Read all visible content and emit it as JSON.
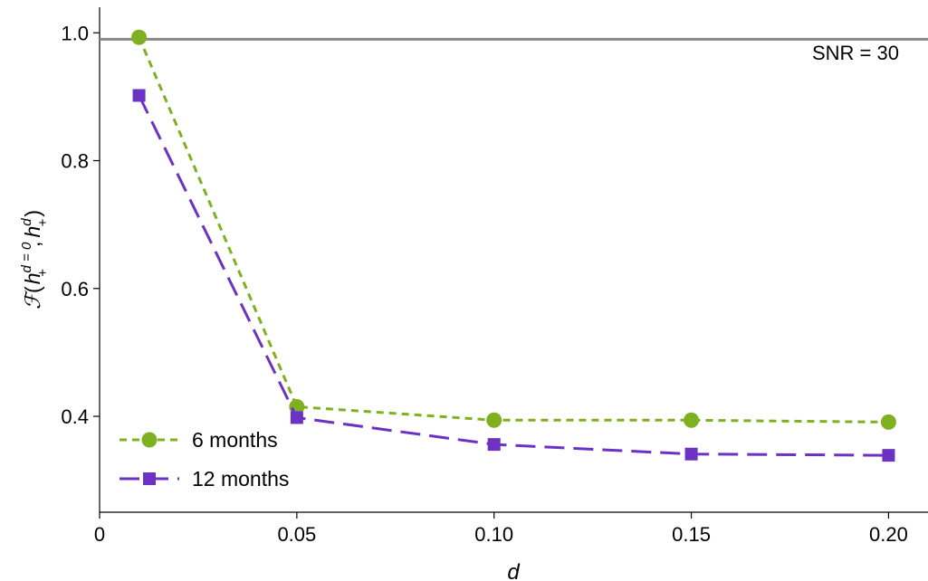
{
  "chart_data": {
    "type": "line",
    "xlabel": "d",
    "ylabel": {
      "func": "ℱ",
      "open": "(",
      "h1": "h",
      "sup1": "d = 0",
      "sub1": "+",
      "comma": ",",
      "h2": "h",
      "sup2": "d",
      "sub2": "+",
      "close": ")"
    },
    "xlim": [
      0,
      0.21
    ],
    "ylim": [
      0.25,
      1.04
    ],
    "xticks": [
      {
        "value": 0,
        "label": "0"
      },
      {
        "value": 0.05,
        "label": "0.05"
      },
      {
        "value": 0.1,
        "label": "0.10"
      },
      {
        "value": 0.15,
        "label": "0.15"
      },
      {
        "value": 0.2,
        "label": "0.20"
      }
    ],
    "yticks": [
      {
        "value": 0.4,
        "label": "0.4"
      },
      {
        "value": 0.6,
        "label": "0.6"
      },
      {
        "value": 0.8,
        "label": "0.8"
      },
      {
        "value": 1.0,
        "label": "1.0"
      }
    ],
    "reference_line": {
      "value": 0.99,
      "label": "SNR = 30",
      "color": "#888888"
    },
    "series": [
      {
        "name": "6 months",
        "color": "#7fb020",
        "marker": "circle",
        "dash": "short",
        "points": [
          {
            "x": 0.01,
            "y": 0.993
          },
          {
            "x": 0.05,
            "y": 0.415
          },
          {
            "x": 0.1,
            "y": 0.394
          },
          {
            "x": 0.15,
            "y": 0.394
          },
          {
            "x": 0.2,
            "y": 0.391
          }
        ]
      },
      {
        "name": "12 months",
        "color": "#6b32c4",
        "marker": "square",
        "dash": "long",
        "points": [
          {
            "x": 0.01,
            "y": 0.902
          },
          {
            "x": 0.05,
            "y": 0.398
          },
          {
            "x": 0.1,
            "y": 0.356
          },
          {
            "x": 0.15,
            "y": 0.341
          },
          {
            "x": 0.2,
            "y": 0.339
          }
        ]
      }
    ]
  }
}
